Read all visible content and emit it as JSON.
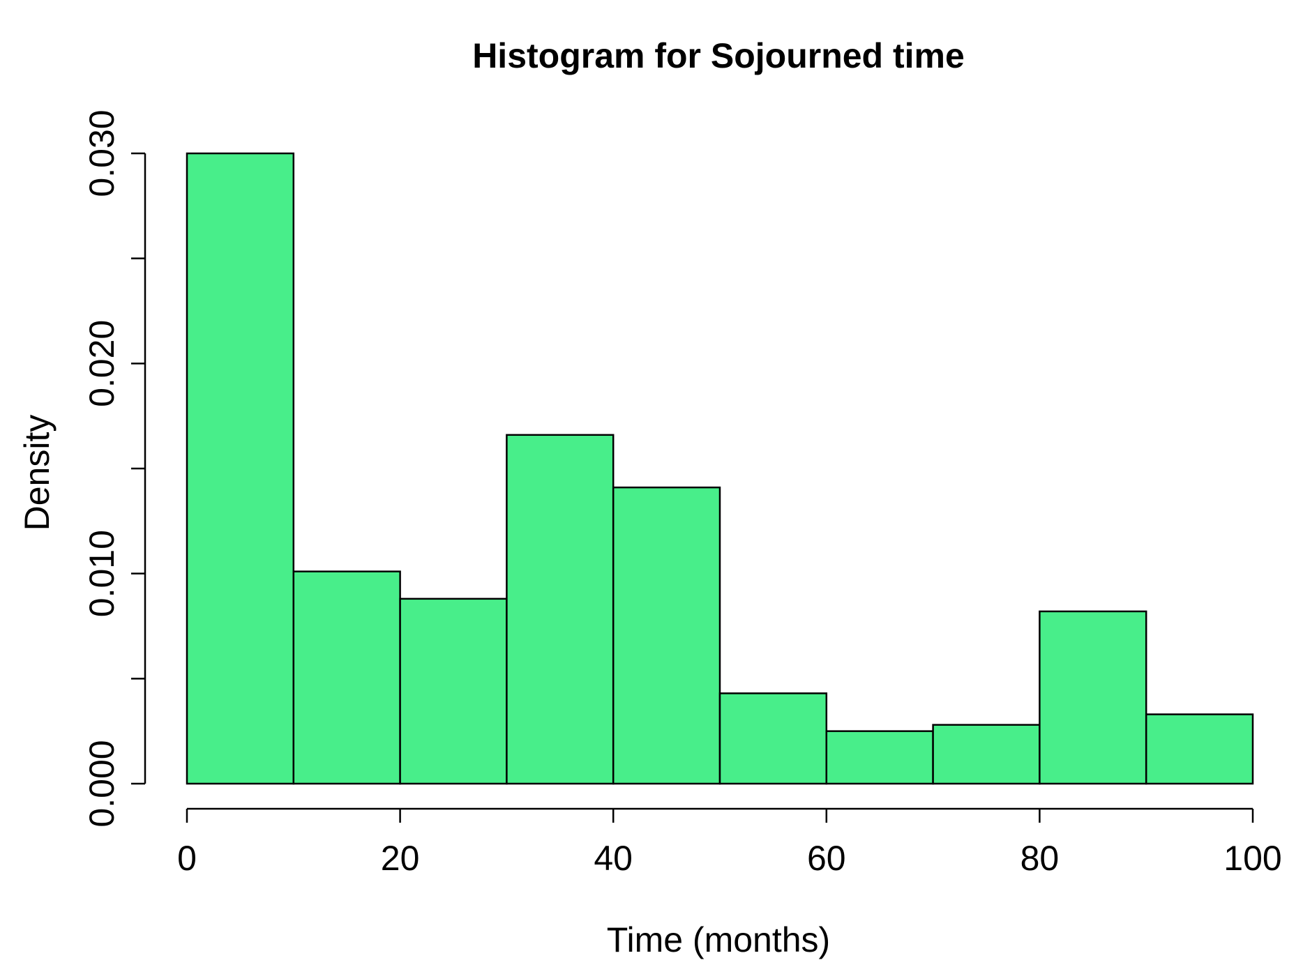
{
  "chart_data": {
    "type": "bar",
    "title": "Histogram for Sojourned time",
    "xlabel": "Time (months)",
    "ylabel": "Density",
    "bin_edges": [
      0,
      10,
      20,
      30,
      40,
      50,
      60,
      70,
      80,
      90,
      100
    ],
    "values": [
      0.03,
      0.0101,
      0.0088,
      0.0166,
      0.0141,
      0.0043,
      0.0025,
      0.0028,
      0.0082,
      0.0033
    ],
    "xlim": [
      0,
      100
    ],
    "ylim": [
      0,
      0.03
    ],
    "x_ticks": [
      "0",
      "20",
      "40",
      "60",
      "80",
      "100"
    ],
    "y_ticks": [
      "0.000",
      "0.010",
      "0.020",
      "0.030"
    ],
    "y_minor_ticks": [
      0.005,
      0.015,
      0.025
    ],
    "bar_color": "#48EE8A",
    "grid": false
  }
}
